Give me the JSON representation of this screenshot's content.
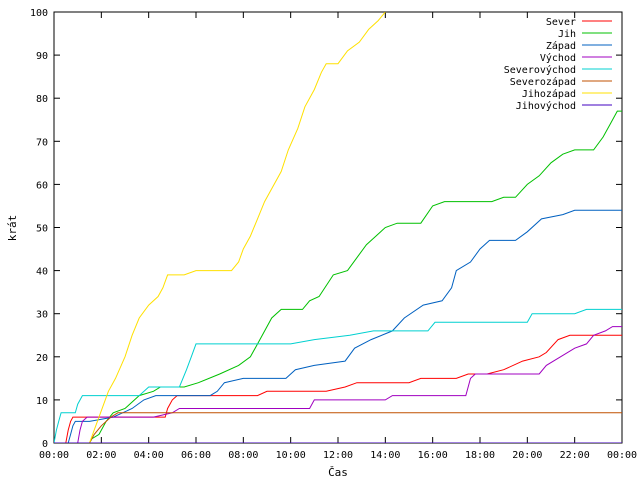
{
  "chart_data": {
    "type": "line",
    "xlabel": "Čas",
    "ylabel": "krát",
    "x_ticks": [
      "00:00",
      "02:00",
      "04:00",
      "06:00",
      "08:00",
      "10:00",
      "12:00",
      "14:00",
      "16:00",
      "18:00",
      "20:00",
      "22:00",
      "00:00"
    ],
    "x_range_hours": [
      0,
      24
    ],
    "ylim": [
      0,
      100
    ],
    "y_ticks": [
      0,
      10,
      20,
      30,
      40,
      50,
      60,
      70,
      80,
      90,
      100
    ],
    "grid": false,
    "legend_position": "top-right",
    "series": [
      {
        "name": "Sever",
        "color": "#ff0000",
        "points": [
          [
            0,
            0
          ],
          [
            0.5,
            0
          ],
          [
            0.6,
            3
          ],
          [
            0.7,
            5
          ],
          [
            0.8,
            6
          ],
          [
            1.0,
            6
          ],
          [
            4.7,
            6
          ],
          [
            4.8,
            8
          ],
          [
            5.0,
            10
          ],
          [
            5.2,
            11
          ],
          [
            8.6,
            11
          ],
          [
            9.0,
            12
          ],
          [
            11.5,
            12
          ],
          [
            12.3,
            13
          ],
          [
            12.8,
            14
          ],
          [
            15.0,
            14
          ],
          [
            15.5,
            15
          ],
          [
            17.0,
            15
          ],
          [
            17.5,
            16
          ],
          [
            18.3,
            16
          ],
          [
            19.0,
            17
          ],
          [
            19.8,
            19
          ],
          [
            20.5,
            20
          ],
          [
            20.8,
            21
          ],
          [
            21.3,
            24
          ],
          [
            21.8,
            25
          ],
          [
            24,
            25
          ]
        ]
      },
      {
        "name": "Jih",
        "color": "#00c000",
        "points": [
          [
            0,
            0
          ],
          [
            1.5,
            0
          ],
          [
            1.6,
            1
          ],
          [
            1.9,
            2
          ],
          [
            2.2,
            5
          ],
          [
            2.5,
            7
          ],
          [
            3.0,
            8
          ],
          [
            3.4,
            10
          ],
          [
            3.6,
            11
          ],
          [
            4.2,
            12
          ],
          [
            4.5,
            13
          ],
          [
            5.5,
            13
          ],
          [
            6.1,
            14
          ],
          [
            7.0,
            16
          ],
          [
            7.8,
            18
          ],
          [
            8.3,
            20
          ],
          [
            8.7,
            24
          ],
          [
            9.2,
            29
          ],
          [
            9.6,
            31
          ],
          [
            10.5,
            31
          ],
          [
            10.8,
            33
          ],
          [
            11.2,
            34
          ],
          [
            11.8,
            39
          ],
          [
            12.4,
            40
          ],
          [
            12.8,
            43
          ],
          [
            13.2,
            46
          ],
          [
            13.6,
            48
          ],
          [
            14.0,
            50
          ],
          [
            14.5,
            51
          ],
          [
            15.5,
            51
          ],
          [
            16.0,
            55
          ],
          [
            16.5,
            56
          ],
          [
            18.5,
            56
          ],
          [
            19.0,
            57
          ],
          [
            19.5,
            57
          ],
          [
            20.0,
            60
          ],
          [
            20.5,
            62
          ],
          [
            21.0,
            65
          ],
          [
            21.5,
            67
          ],
          [
            22.0,
            68
          ],
          [
            22.8,
            68
          ],
          [
            23.2,
            71
          ],
          [
            23.5,
            74
          ],
          [
            23.8,
            77
          ],
          [
            24,
            77
          ]
        ]
      },
      {
        "name": "Západ",
        "color": "#0060c0",
        "points": [
          [
            0,
            0
          ],
          [
            0.6,
            0
          ],
          [
            0.7,
            2
          ],
          [
            0.8,
            4
          ],
          [
            0.9,
            5
          ],
          [
            1.5,
            5
          ],
          [
            2.5,
            6
          ],
          [
            3.3,
            8
          ],
          [
            3.8,
            10
          ],
          [
            4.3,
            11
          ],
          [
            5.5,
            11
          ],
          [
            6.6,
            11
          ],
          [
            6.9,
            12
          ],
          [
            7.2,
            14
          ],
          [
            8.0,
            15
          ],
          [
            9.8,
            15
          ],
          [
            10.2,
            17
          ],
          [
            11.0,
            18
          ],
          [
            12.3,
            19
          ],
          [
            12.7,
            22
          ],
          [
            13.4,
            24
          ],
          [
            14.3,
            26
          ],
          [
            14.8,
            29
          ],
          [
            15.6,
            32
          ],
          [
            16.4,
            33
          ],
          [
            16.8,
            36
          ],
          [
            17.0,
            40
          ],
          [
            17.6,
            42
          ],
          [
            18.0,
            45
          ],
          [
            18.4,
            47
          ],
          [
            19.5,
            47
          ],
          [
            20.0,
            49
          ],
          [
            20.6,
            52
          ],
          [
            21.5,
            53
          ],
          [
            22.0,
            54
          ],
          [
            24,
            54
          ]
        ]
      },
      {
        "name": "Východ",
        "color": "#a000c0",
        "points": [
          [
            0,
            0
          ],
          [
            1.0,
            0
          ],
          [
            1.1,
            3
          ],
          [
            1.2,
            5
          ],
          [
            1.4,
            6
          ],
          [
            4.2,
            6
          ],
          [
            5.0,
            7
          ],
          [
            5.3,
            8
          ],
          [
            10.8,
            8
          ],
          [
            11.0,
            10
          ],
          [
            14.0,
            10
          ],
          [
            14.3,
            11
          ],
          [
            17.4,
            11
          ],
          [
            17.6,
            15
          ],
          [
            17.8,
            16
          ],
          [
            20.5,
            16
          ],
          [
            20.8,
            18
          ],
          [
            21.4,
            20
          ],
          [
            22.0,
            22
          ],
          [
            22.5,
            23
          ],
          [
            22.8,
            25
          ],
          [
            23.3,
            26
          ],
          [
            23.6,
            27
          ],
          [
            24,
            27
          ]
        ]
      },
      {
        "name": "Severovýchod",
        "color": "#00d0d0",
        "points": [
          [
            0,
            0
          ],
          [
            0.1,
            3
          ],
          [
            0.2,
            5
          ],
          [
            0.3,
            7
          ],
          [
            0.9,
            7
          ],
          [
            1.0,
            9
          ],
          [
            1.2,
            11
          ],
          [
            3.6,
            11
          ],
          [
            4.0,
            13
          ],
          [
            5.3,
            13
          ],
          [
            5.6,
            17
          ],
          [
            5.8,
            20
          ],
          [
            6.0,
            23
          ],
          [
            10.0,
            23
          ],
          [
            11.0,
            24
          ],
          [
            12.5,
            25
          ],
          [
            13.5,
            26
          ],
          [
            15.8,
            26
          ],
          [
            16.1,
            28
          ],
          [
            20.0,
            28
          ],
          [
            20.2,
            30
          ],
          [
            22.0,
            30
          ],
          [
            22.5,
            31
          ],
          [
            24,
            31
          ]
        ]
      },
      {
        "name": "Severozápad",
        "color": "#c05000",
        "points": [
          [
            0,
            0
          ],
          [
            1.5,
            0
          ],
          [
            1.7,
            2
          ],
          [
            2.0,
            4
          ],
          [
            2.4,
            6
          ],
          [
            2.7,
            7
          ],
          [
            24,
            7
          ]
        ]
      },
      {
        "name": "Jihozápad",
        "color": "#ffe000",
        "points": [
          [
            0,
            0
          ],
          [
            1.5,
            0
          ],
          [
            1.7,
            3
          ],
          [
            1.9,
            6
          ],
          [
            2.1,
            9
          ],
          [
            2.3,
            12
          ],
          [
            2.6,
            15
          ],
          [
            3.0,
            20
          ],
          [
            3.3,
            25
          ],
          [
            3.6,
            29
          ],
          [
            4.0,
            32
          ],
          [
            4.4,
            34
          ],
          [
            4.6,
            36
          ],
          [
            4.8,
            39
          ],
          [
            5.5,
            39
          ],
          [
            6.0,
            40
          ],
          [
            7.5,
            40
          ],
          [
            7.8,
            42
          ],
          [
            8.0,
            45
          ],
          [
            8.3,
            48
          ],
          [
            8.6,
            52
          ],
          [
            8.9,
            56
          ],
          [
            9.2,
            59
          ],
          [
            9.6,
            63
          ],
          [
            9.9,
            68
          ],
          [
            10.3,
            73
          ],
          [
            10.6,
            78
          ],
          [
            11.0,
            82
          ],
          [
            11.3,
            86
          ],
          [
            11.5,
            88
          ],
          [
            12.0,
            88
          ],
          [
            12.4,
            91
          ],
          [
            12.9,
            93
          ],
          [
            13.3,
            96
          ],
          [
            13.7,
            98
          ],
          [
            14.0,
            100
          ]
        ]
      },
      {
        "name": "Jihovýchod",
        "color": "#4000c0",
        "points": [
          [
            0,
            0
          ],
          [
            0.5,
            0
          ],
          [
            24,
            0
          ]
        ]
      }
    ]
  }
}
